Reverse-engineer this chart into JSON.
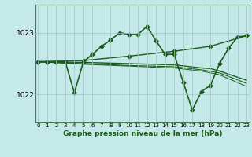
{
  "xlabel": "Graphe pression niveau de la mer (hPa)",
  "background_color": "#c5e8e8",
  "plot_bg_color": "#c5e8e8",
  "grid_color": "#9ec8c8",
  "line_color": "#1a5c1a",
  "x_ticks": [
    0,
    1,
    2,
    3,
    4,
    5,
    6,
    7,
    8,
    9,
    10,
    11,
    12,
    13,
    14,
    15,
    16,
    17,
    18,
    19,
    20,
    21,
    22,
    23
  ],
  "yticks": [
    1022,
    1023
  ],
  "ylim": [
    1021.55,
    1023.45
  ],
  "xlim": [
    -0.3,
    23.3
  ],
  "series": [
    {
      "x": [
        0,
        1,
        2,
        3,
        4,
        5,
        6,
        7,
        8,
        9,
        10,
        11,
        12,
        13,
        14,
        15,
        16,
        17,
        18,
        19,
        20,
        21,
        22,
        23
      ],
      "y": [
        1022.53,
        1022.53,
        1022.53,
        1022.53,
        1022.03,
        1022.53,
        1022.65,
        1022.78,
        1022.88,
        1023.0,
        1022.97,
        1022.97,
        1023.1,
        1022.87,
        1022.65,
        1022.65,
        1022.2,
        1021.75,
        1022.05,
        1022.15,
        1022.5,
        1022.75,
        1022.93,
        1022.95
      ],
      "marker": "D",
      "markersize": 3,
      "linewidth": 1.2
    },
    {
      "x": [
        0,
        5,
        10,
        15,
        19,
        23
      ],
      "y": [
        1022.53,
        1022.55,
        1022.62,
        1022.7,
        1022.78,
        1022.95
      ],
      "marker": "D",
      "markersize": 3,
      "linewidth": 1.0
    },
    {
      "x": [
        0,
        5,
        10,
        15,
        18,
        19,
        20,
        23
      ],
      "y": [
        1022.53,
        1022.52,
        1022.5,
        1022.48,
        1022.43,
        1022.42,
        1022.38,
        1022.23
      ],
      "marker": null,
      "markersize": 0,
      "linewidth": 1.0
    },
    {
      "x": [
        0,
        5,
        10,
        15,
        18,
        20,
        23
      ],
      "y": [
        1022.53,
        1022.5,
        1022.47,
        1022.45,
        1022.4,
        1022.35,
        1022.18
      ],
      "marker": null,
      "markersize": 0,
      "linewidth": 0.8
    },
    {
      "x": [
        0,
        5,
        10,
        15,
        18,
        20,
        23
      ],
      "y": [
        1022.53,
        1022.49,
        1022.46,
        1022.43,
        1022.38,
        1022.32,
        1022.13
      ],
      "marker": null,
      "markersize": 0,
      "linewidth": 0.7
    }
  ]
}
